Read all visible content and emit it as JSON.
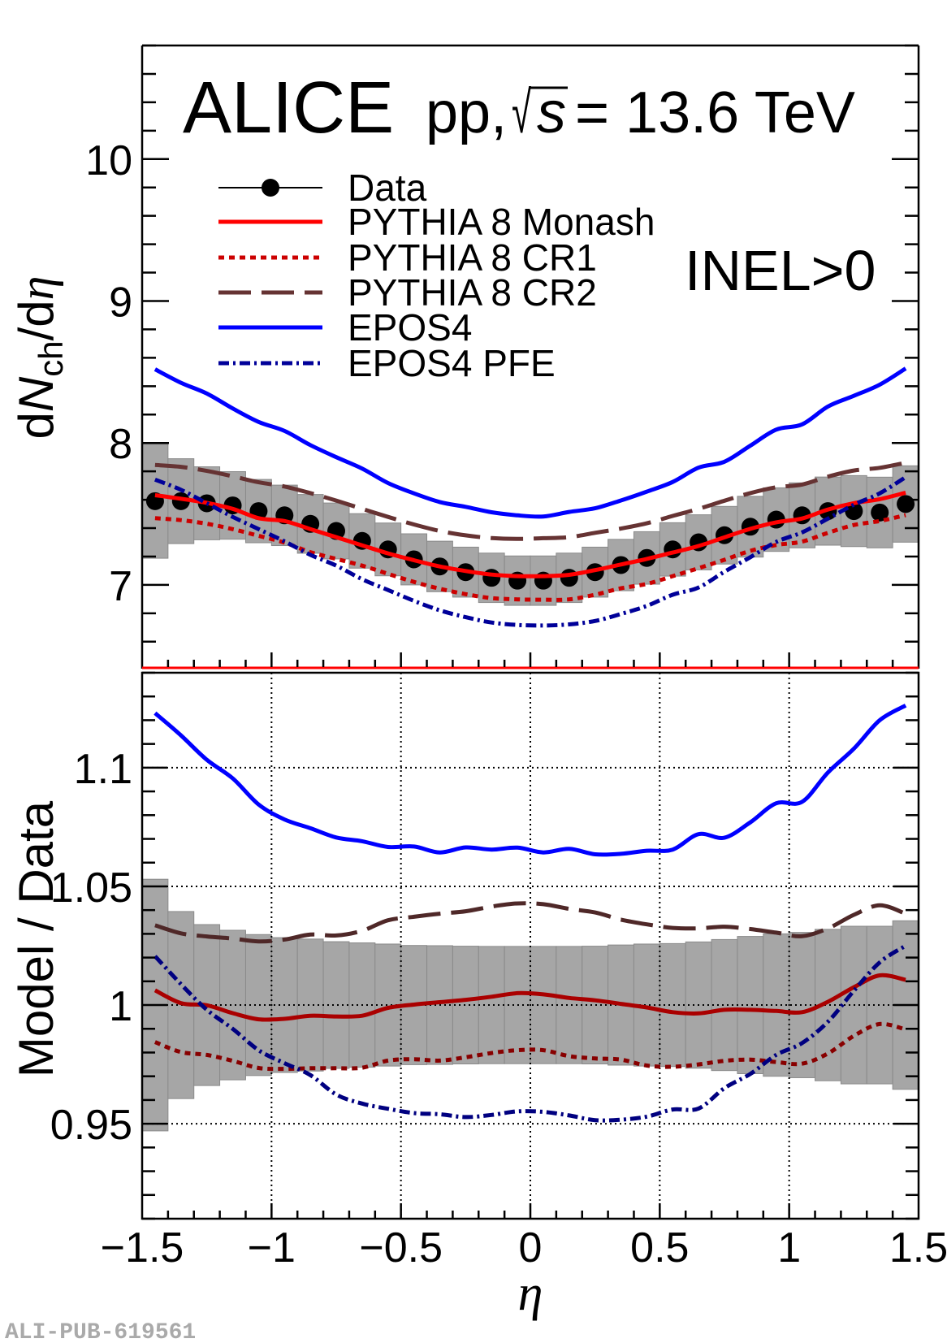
{
  "figure": {
    "experiment": "ALICE",
    "system": "pp,",
    "sqrt_symbol": "√",
    "sqrt_var": "s",
    "energy": "= 13.6 TeV",
    "event_class": "INEL>0",
    "watermark": "ALI-PUB-619561"
  },
  "legend": [
    {
      "label": "Data",
      "style": "marker",
      "color": "#000000"
    },
    {
      "label": "PYTHIA 8 Monash",
      "style": "solid",
      "color": "#ff0000"
    },
    {
      "label": "PYTHIA 8 CR1",
      "style": "dotted",
      "color": "#cc0000"
    },
    {
      "label": "PYTHIA 8 CR2",
      "style": "dashed",
      "color": "#663333"
    },
    {
      "label": "EPOS4",
      "style": "solid",
      "color": "#0000ff"
    },
    {
      "label": "EPOS4 PFE",
      "style": "dashdot",
      "color": "#000099"
    }
  ],
  "chart_data": [
    {
      "panel": "spectrum",
      "type": "line",
      "title": "ALICE pp, √s = 13.6 TeV",
      "annotation": "INEL>0",
      "xlabel": "",
      "ylabel": "dNch/dη",
      "ylabel_parts": {
        "d": "d",
        "N": "N",
        "sub": "ch",
        "slash_d": "/d",
        "eta": "η"
      },
      "xlim": [
        -1.5,
        1.5
      ],
      "ylim": [
        6.41,
        10.8
      ],
      "yticks": [
        7,
        8,
        9,
        10
      ],
      "ytick_labels": [
        "7",
        "8",
        "9",
        "10"
      ],
      "ytick_minor_step": 0.2,
      "xtick_minor_step": 0.1,
      "grid": false,
      "legend_position": "top-left",
      "x": [
        -1.45,
        -1.35,
        -1.25,
        -1.15,
        -1.05,
        -0.95,
        -0.85,
        -0.75,
        -0.65,
        -0.55,
        -0.45,
        -0.35,
        -0.25,
        -0.15,
        -0.05,
        0.05,
        0.15,
        0.25,
        0.35,
        0.45,
        0.55,
        0.65,
        0.75,
        0.85,
        0.95,
        1.05,
        1.15,
        1.25,
        1.35,
        1.45
      ],
      "data": {
        "name": "Data",
        "values": [
          7.59,
          7.59,
          7.575,
          7.56,
          7.52,
          7.49,
          7.43,
          7.38,
          7.31,
          7.25,
          7.18,
          7.13,
          7.09,
          7.05,
          7.03,
          7.03,
          7.05,
          7.09,
          7.14,
          7.19,
          7.25,
          7.3,
          7.35,
          7.41,
          7.46,
          7.49,
          7.52,
          7.52,
          7.51,
          7.57
        ],
        "syst": [
          0.402,
          0.299,
          0.257,
          0.238,
          0.223,
          0.213,
          0.207,
          0.197,
          0.192,
          0.186,
          0.18,
          0.178,
          0.176,
          0.174,
          0.174,
          0.174,
          0.174,
          0.176,
          0.181,
          0.185,
          0.188,
          0.194,
          0.203,
          0.214,
          0.224,
          0.229,
          0.24,
          0.25,
          0.249,
          0.269
        ],
        "bin_width": 0.1
      },
      "series": [
        {
          "name": "PYTHIA 8 Monash",
          "style": "solid",
          "color": "#ff0000",
          "values": [
            7.632,
            7.607,
            7.578,
            7.536,
            7.47,
            7.45,
            7.393,
            7.336,
            7.279,
            7.222,
            7.174,
            7.13,
            7.098,
            7.073,
            7.062,
            7.062,
            7.071,
            7.104,
            7.144,
            7.183,
            7.228,
            7.274,
            7.335,
            7.395,
            7.441,
            7.468,
            7.531,
            7.576,
            7.604,
            7.65
          ]
        },
        {
          "name": "PYTHIA 8 CR1",
          "style": "dotted",
          "color": "#cc0000",
          "values": [
            7.47,
            7.456,
            7.431,
            7.393,
            7.346,
            7.298,
            7.231,
            7.183,
            7.136,
            7.078,
            7.021,
            6.973,
            6.935,
            6.907,
            6.898,
            6.896,
            6.898,
            6.931,
            6.976,
            7.007,
            7.062,
            7.118,
            7.177,
            7.24,
            7.281,
            7.305,
            7.367,
            7.422,
            7.45,
            7.492
          ]
        },
        {
          "name": "PYTHIA 8 CR2",
          "style": "dashed",
          "color": "#663333",
          "values": [
            7.845,
            7.832,
            7.803,
            7.765,
            7.723,
            7.693,
            7.647,
            7.594,
            7.536,
            7.479,
            7.426,
            7.38,
            7.349,
            7.33,
            7.324,
            7.329,
            7.336,
            7.367,
            7.397,
            7.434,
            7.486,
            7.536,
            7.593,
            7.647,
            7.688,
            7.707,
            7.763,
            7.806,
            7.825,
            7.861
          ]
        },
        {
          "name": "EPOS4",
          "style": "solid",
          "color": "#0000ff",
          "values": [
            8.519,
            8.424,
            8.348,
            8.243,
            8.148,
            8.085,
            7.985,
            7.9,
            7.82,
            7.718,
            7.645,
            7.584,
            7.55,
            7.512,
            7.49,
            7.482,
            7.514,
            7.54,
            7.595,
            7.657,
            7.725,
            7.826,
            7.868,
            7.981,
            8.094,
            8.131,
            8.257,
            8.332,
            8.411,
            8.525
          ]
        },
        {
          "name": "EPOS4 PFE",
          "style": "dashdot",
          "color": "#000099",
          "values": [
            7.742,
            7.67,
            7.575,
            7.479,
            7.393,
            7.307,
            7.212,
            7.136,
            7.04,
            6.964,
            6.888,
            6.821,
            6.773,
            6.735,
            6.718,
            6.714,
            6.722,
            6.746,
            6.795,
            6.852,
            6.931,
            6.982,
            7.093,
            7.195,
            7.303,
            7.37,
            7.467,
            7.565,
            7.645,
            7.759
          ]
        }
      ]
    },
    {
      "panel": "ratio",
      "type": "line",
      "xlabel": "η",
      "ylabel": "Model / Data",
      "xlim": [
        -1.5,
        1.5
      ],
      "ylim": [
        0.91,
        1.14
      ],
      "yticks": [
        0.95,
        1,
        1.05,
        1.1
      ],
      "ytick_labels": [
        "0.95",
        "1",
        "1.05",
        "1.1"
      ],
      "ytick_minor_step": 0.01,
      "xticks": [
        -1.5,
        -1,
        -0.5,
        0,
        0.5,
        1,
        1.5
      ],
      "xtick_labels": [
        "−1.5",
        "−1",
        "−0.5",
        "0",
        "0.5",
        "1",
        "1.5"
      ],
      "xtick_minor_step": 0.1,
      "grid": true,
      "x": [
        -1.45,
        -1.35,
        -1.25,
        -1.15,
        -1.05,
        -0.95,
        -0.85,
        -0.75,
        -0.65,
        -0.55,
        -0.45,
        -0.35,
        -0.25,
        -0.15,
        -0.05,
        0.05,
        0.15,
        0.25,
        0.35,
        0.45,
        0.55,
        0.65,
        0.75,
        0.85,
        0.95,
        1.05,
        1.15,
        1.25,
        1.35,
        1.45
      ],
      "data_syst_rel": [
        0.053,
        0.0394,
        0.0339,
        0.0315,
        0.0297,
        0.0284,
        0.0278,
        0.0267,
        0.0262,
        0.0257,
        0.0251,
        0.025,
        0.0248,
        0.0247,
        0.0247,
        0.0247,
        0.0247,
        0.0248,
        0.0253,
        0.0257,
        0.0259,
        0.0266,
        0.0276,
        0.0289,
        0.03,
        0.0306,
        0.0319,
        0.0332,
        0.0332,
        0.0355
      ],
      "bin_width": 0.1,
      "series": [
        {
          "name": "PYTHIA 8 Monash",
          "style": "solid",
          "color": "#aa0000",
          "values": [
            1.0062,
            1.0008,
            0.9999,
            0.9966,
            0.994,
            0.9942,
            0.9955,
            0.9952,
            0.9955,
            0.9988,
            1.0002,
            1.0012,
            1.0022,
            1.0035,
            1.005,
            1.0045,
            1.003,
            1.002,
            1.0005,
            0.999,
            0.997,
            0.9965,
            0.998,
            0.998,
            0.9975,
            0.997,
            1.0014,
            1.0075,
            1.0125,
            1.0106
          ]
        },
        {
          "name": "PYTHIA 8 CR1",
          "style": "dotted",
          "color": "#880000",
          "values": [
            0.9844,
            0.9802,
            0.979,
            0.9765,
            0.9735,
            0.9731,
            0.9734,
            0.9734,
            0.9736,
            0.9766,
            0.9772,
            0.9766,
            0.978,
            0.9798,
            0.981,
            0.981,
            0.9785,
            0.9775,
            0.977,
            0.9745,
            0.974,
            0.975,
            0.9765,
            0.977,
            0.976,
            0.9753,
            0.9796,
            0.987,
            0.992,
            0.9897
          ]
        },
        {
          "name": "PYTHIA 8 CR2",
          "style": "dashed",
          "color": "#4f2828",
          "values": [
            1.0336,
            1.0302,
            1.0289,
            1.028,
            1.0268,
            1.0276,
            1.0297,
            1.0293,
            1.0313,
            1.0357,
            1.0372,
            1.0385,
            1.0395,
            1.0415,
            1.0428,
            1.0425,
            1.0405,
            1.039,
            1.036,
            1.034,
            1.0325,
            1.0323,
            1.033,
            1.032,
            1.0305,
            1.029,
            1.0323,
            1.038,
            1.042,
            1.0385
          ]
        },
        {
          "name": "EPOS4",
          "style": "solid",
          "color": "#0000ff",
          "values": [
            1.123,
            1.1136,
            1.1033,
            1.0955,
            1.0845,
            1.0782,
            1.0745,
            1.0706,
            1.069,
            1.0666,
            1.0668,
            1.0643,
            1.0664,
            1.0655,
            1.0663,
            1.0643,
            1.0658,
            1.0635,
            1.0637,
            1.065,
            1.0655,
            1.072,
            1.0705,
            1.077,
            1.085,
            1.0856,
            1.098,
            1.108,
            1.12,
            1.1262
          ]
        },
        {
          "name": "EPOS4 PFE",
          "style": "dashdot",
          "color": "#000080",
          "values": [
            1.0206,
            1.0088,
            0.998,
            0.99,
            0.981,
            0.9755,
            0.9705,
            0.9623,
            0.9585,
            0.9563,
            0.9545,
            0.954,
            0.9528,
            0.9537,
            0.9552,
            0.955,
            0.9535,
            0.9515,
            0.9517,
            0.953,
            0.956,
            0.9564,
            0.965,
            0.971,
            0.979,
            0.984,
            0.993,
            1.006,
            1.018,
            1.025
          ]
        }
      ]
    }
  ]
}
